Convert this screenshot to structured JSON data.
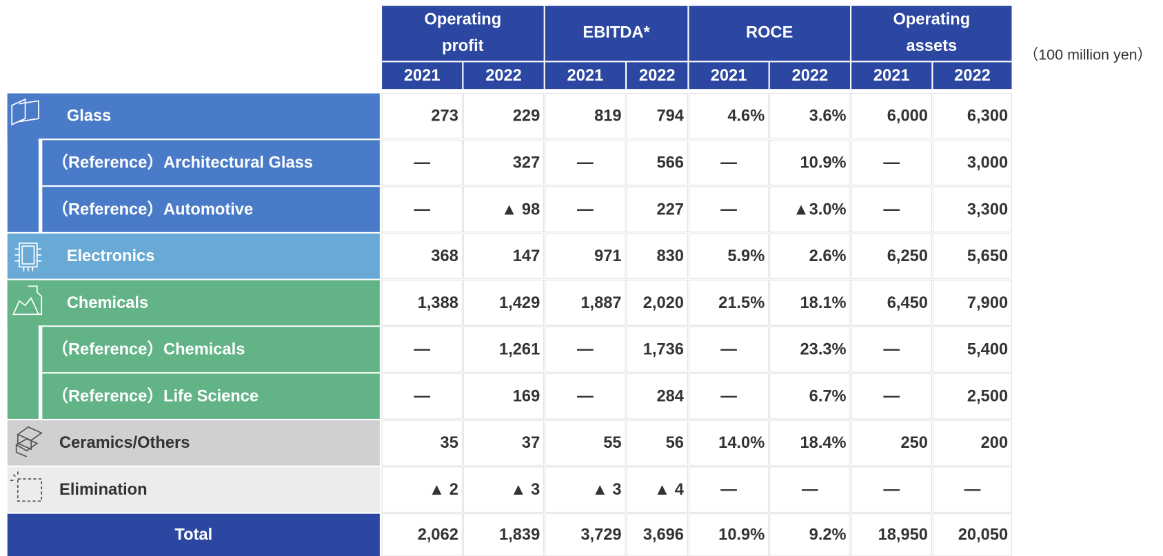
{
  "unit_note": "（100 million yen）",
  "header": {
    "groups": [
      {
        "lines": [
          "Operating",
          "profit"
        ]
      },
      {
        "lines": [
          "EBITDA*"
        ]
      },
      {
        "lines": [
          "ROCE"
        ]
      },
      {
        "lines": [
          "Operating",
          "assets"
        ]
      }
    ],
    "years": [
      "2021",
      "2022",
      "2021",
      "2022",
      "2021",
      "2022",
      "2021",
      "2022"
    ]
  },
  "rows": [
    {
      "label": "Glass",
      "kind": "main",
      "color": "#4a7bc8",
      "text_color": "#ffffff",
      "cells": [
        "273",
        "229",
        "819",
        "794",
        "4.6%",
        "3.6%",
        "6,000",
        "6,300"
      ]
    },
    {
      "label": "（Reference）Architectural Glass",
      "kind": "sub",
      "color": "#4a7bc8",
      "text_color": "#ffffff",
      "cells": [
        "—",
        "327",
        "—",
        "566",
        "—",
        "10.9%",
        "—",
        "3,000"
      ]
    },
    {
      "label": "（Reference）Automotive",
      "kind": "sub",
      "color": "#4a7bc8",
      "text_color": "#ffffff",
      "cells": [
        "—",
        "▲ 98",
        "—",
        "227",
        "—",
        "▲3.0%",
        "—",
        "3,300"
      ]
    },
    {
      "label": "Electronics",
      "kind": "main",
      "color": "#68a9d6",
      "text_color": "#ffffff",
      "cells": [
        "368",
        "147",
        "971",
        "830",
        "5.9%",
        "2.6%",
        "6,250",
        "5,650"
      ]
    },
    {
      "label": "Chemicals",
      "kind": "main",
      "color": "#62b487",
      "text_color": "#ffffff",
      "cells": [
        "1,388",
        "1,429",
        "1,887",
        "2,020",
        "21.5%",
        "18.1%",
        "6,450",
        "7,900"
      ]
    },
    {
      "label": "（Reference）Chemicals",
      "kind": "sub",
      "color": "#62b487",
      "text_color": "#ffffff",
      "cells": [
        "—",
        "1,261",
        "—",
        "1,736",
        "—",
        "23.3%",
        "—",
        "5,400"
      ]
    },
    {
      "label": "（Reference）Life Science",
      "kind": "sub",
      "color": "#62b487",
      "text_color": "#ffffff",
      "cells": [
        "—",
        "169",
        "—",
        "284",
        "—",
        "6.7%",
        "—",
        "2,500"
      ]
    },
    {
      "label": "Ceramics/Others",
      "kind": "main",
      "color": "#d0d0d2",
      "text_color": "#333333",
      "cells": [
        "35",
        "37",
        "55",
        "56",
        "14.0%",
        "18.4%",
        "250",
        "200"
      ]
    },
    {
      "label": "Elimination",
      "kind": "main",
      "color": "#ececec",
      "text_color": "#333333",
      "cells": [
        "▲ 2",
        "▲ 3",
        "▲ 3",
        "▲ 4",
        "—",
        "—",
        "—",
        "—"
      ]
    },
    {
      "label": "Total",
      "kind": "total",
      "color": "#2b47a1",
      "text_color": "#ffffff",
      "cells": [
        "2,062",
        "1,839",
        "3,729",
        "3,696",
        "10.9%",
        "9.2%",
        "18,950",
        "20,050"
      ]
    }
  ]
}
